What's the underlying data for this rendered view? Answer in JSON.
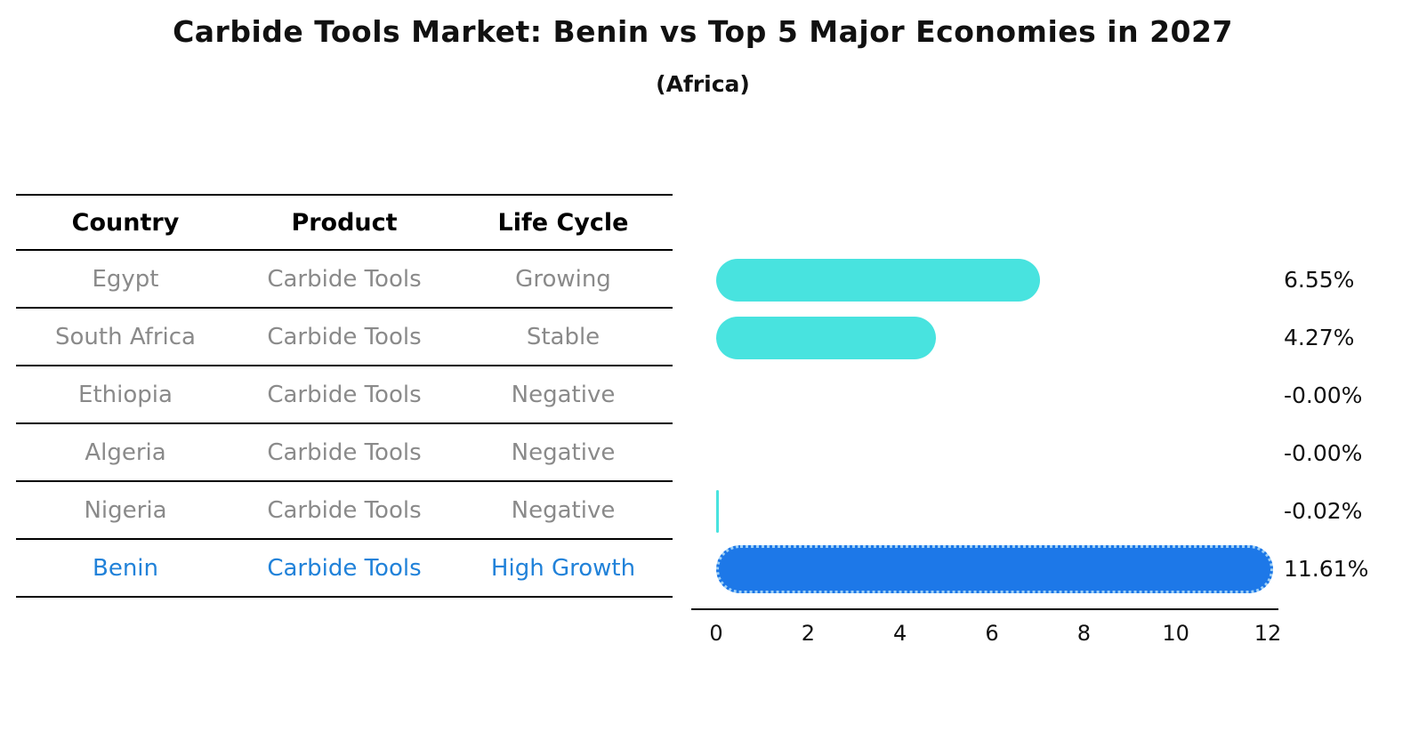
{
  "title": "Carbide Tools Market: Benin vs Top 5 Major Economies in 2027",
  "subtitle": "(Africa)",
  "table": {
    "headers": [
      "Country",
      "Product",
      "Life Cycle"
    ],
    "rows": [
      {
        "country": "Egypt",
        "product": "Carbide Tools",
        "life_cycle": "Growing"
      },
      {
        "country": "South Africa",
        "product": "Carbide Tools",
        "life_cycle": "Stable"
      },
      {
        "country": "Ethiopia",
        "product": "Carbide Tools",
        "life_cycle": "Negative"
      },
      {
        "country": "Algeria",
        "product": "Carbide Tools",
        "life_cycle": "Negative"
      },
      {
        "country": "Nigeria",
        "product": "Carbide Tools",
        "life_cycle": "Negative"
      },
      {
        "country": "Benin",
        "product": "Carbide Tools",
        "life_cycle": "High Growth"
      }
    ],
    "highlight_row": "Benin"
  },
  "chart_data": {
    "type": "bar",
    "orientation": "horizontal",
    "title": "Carbide Tools Market: Benin vs Top 5 Major Economies in 2027",
    "subtitle": "(Africa)",
    "categories": [
      "Egypt",
      "South Africa",
      "Ethiopia",
      "Algeria",
      "Nigeria",
      "Benin"
    ],
    "values": [
      6.55,
      4.27,
      -0.0,
      -0.0,
      -0.02,
      11.61
    ],
    "value_labels": [
      "6.55%",
      "4.27%",
      "-0.00%",
      "-0.00%",
      "-0.02%",
      "11.61%"
    ],
    "unit": "%",
    "xlim": [
      0,
      12
    ],
    "x_ticks": [
      0,
      2,
      4,
      6,
      8,
      10,
      12
    ],
    "highlight_index": 5,
    "grid": false,
    "legend": "none",
    "colors": {
      "bar_default": "#48E3DF",
      "bar_highlight": "#1D78E8",
      "bar_highlight_border": "#9FD1F7",
      "row_text": "#8A8A8A",
      "highlight_text": "#2182D9",
      "axis": "#000000"
    }
  }
}
